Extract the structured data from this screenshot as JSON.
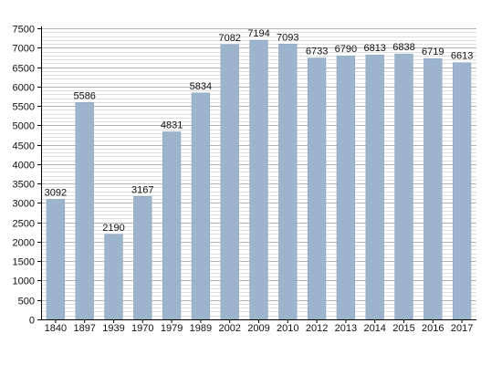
{
  "chart_data": {
    "type": "bar",
    "title": "",
    "xlabel": "",
    "ylabel": "",
    "categories": [
      "1840",
      "1897",
      "1939",
      "1970",
      "1979",
      "1989",
      "2002",
      "2009",
      "2010",
      "2012",
      "2013",
      "2014",
      "2015",
      "2016",
      "2017"
    ],
    "values": [
      3092,
      5586,
      2190,
      3167,
      4831,
      5834,
      7082,
      7194,
      7093,
      6733,
      6790,
      6813,
      6838,
      6719,
      6613
    ],
    "data_labels": [
      "3092",
      "5586",
      "2190",
      "3167",
      "4831",
      "5834",
      "7082",
      "7194",
      "7093",
      "6733",
      "6790",
      "6813",
      "6838",
      "6719",
      "6613"
    ],
    "ylim": [
      0,
      7500
    ],
    "yticks": [
      0,
      500,
      1000,
      1500,
      2000,
      2500,
      3000,
      3500,
      4000,
      4500,
      5000,
      5500,
      6000,
      6500,
      7000,
      7500
    ],
    "ytick_labels": [
      "0",
      "500",
      "1000",
      "1500",
      "2000",
      "2500",
      "3000",
      "3500",
      "4000",
      "4500",
      "5000",
      "5500",
      "6000",
      "6500",
      "7000",
      "7500"
    ],
    "minor_grid_step": 100,
    "grid": true,
    "legend": "none",
    "colors": {
      "bar": "#9db4cd",
      "bar_edge": "#8aa3bf",
      "major_grid": "#b5b5b5",
      "minor_grid": "#dedede",
      "axis": "#000000"
    }
  }
}
